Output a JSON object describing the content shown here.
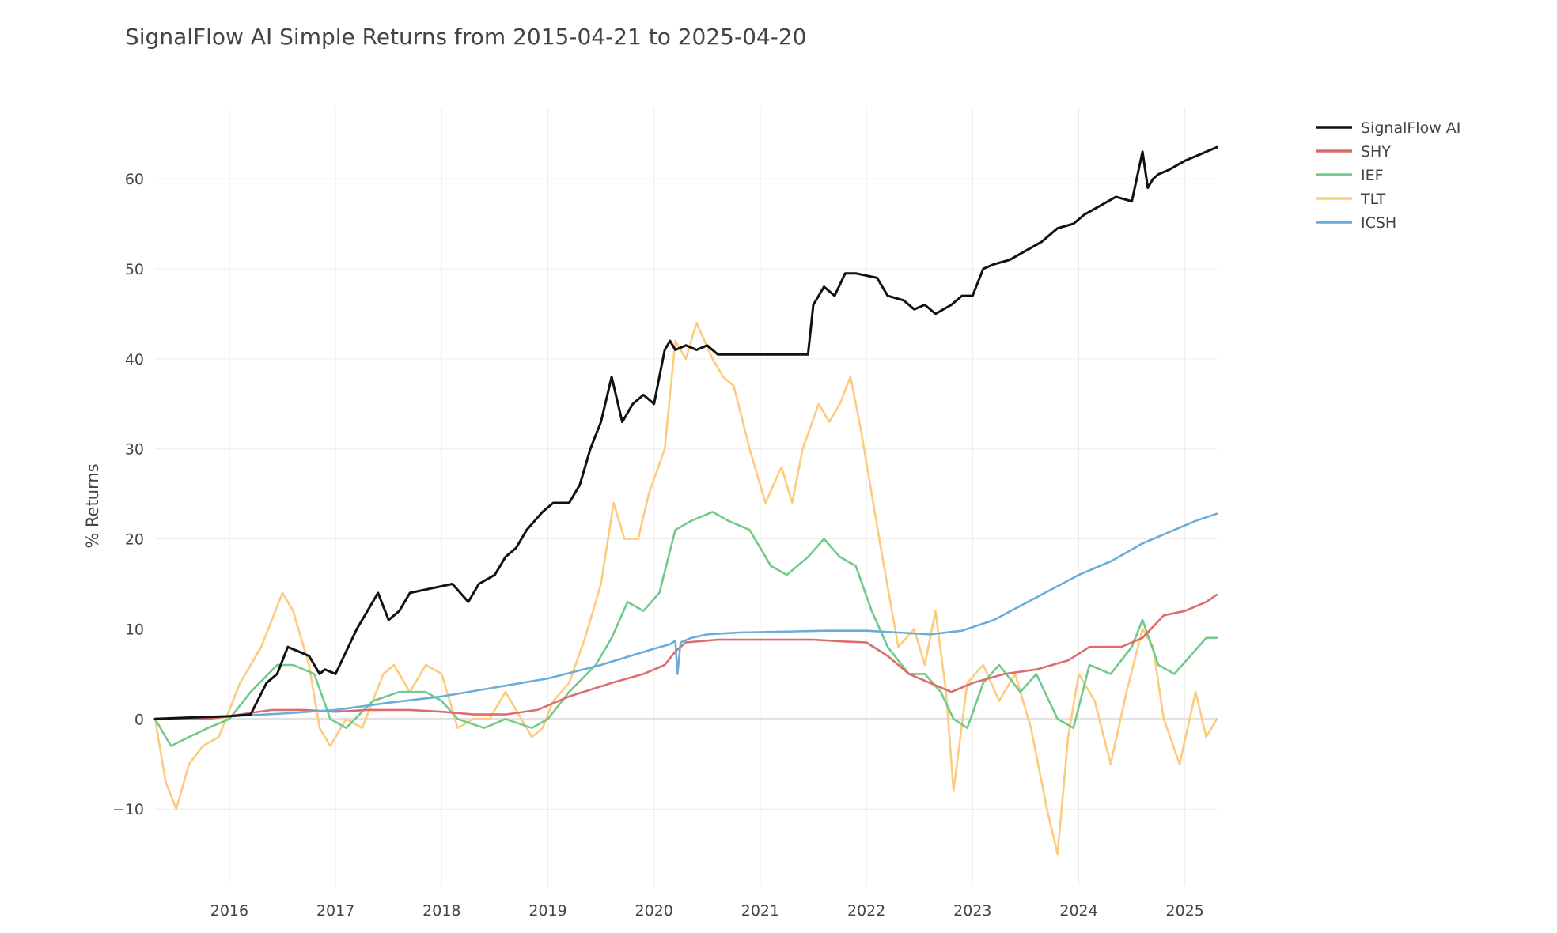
{
  "chart_data": {
    "type": "line",
    "title": "SignalFlow AI Simple Returns from 2015-04-21 to 2025-04-20",
    "xlabel": "",
    "ylabel": "% Returns",
    "xlim": [
      2015.3,
      2025.3
    ],
    "ylim": [
      -18.5,
      68
    ],
    "x_ticks": [
      {
        "value": 2016,
        "label": "2016"
      },
      {
        "value": 2017,
        "label": "2017"
      },
      {
        "value": 2018,
        "label": "2018"
      },
      {
        "value": 2019,
        "label": "2019"
      },
      {
        "value": 2020,
        "label": "2020"
      },
      {
        "value": 2021,
        "label": "2021"
      },
      {
        "value": 2022,
        "label": "2022"
      },
      {
        "value": 2023,
        "label": "2023"
      },
      {
        "value": 2024,
        "label": "2024"
      },
      {
        "value": 2025,
        "label": "2025"
      }
    ],
    "y_ticks": [
      {
        "value": -10,
        "label": "−10"
      },
      {
        "value": 0,
        "label": "0"
      },
      {
        "value": 10,
        "label": "10"
      },
      {
        "value": 20,
        "label": "20"
      },
      {
        "value": 30,
        "label": "30"
      },
      {
        "value": 40,
        "label": "40"
      },
      {
        "value": 50,
        "label": "50"
      },
      {
        "value": 60,
        "label": "60"
      }
    ],
    "grid": true,
    "legend_position": "top-right",
    "series": [
      {
        "name": "TLT",
        "color": "#fdcb7e",
        "x": [
          2015.3,
          2015.4,
          2015.5,
          2015.62,
          2015.75,
          2015.9,
          2016.1,
          2016.3,
          2016.5,
          2016.6,
          2016.75,
          2016.85,
          2016.95,
          2017.1,
          2017.25,
          2017.45,
          2017.55,
          2017.7,
          2017.85,
          2018.0,
          2018.15,
          2018.3,
          2018.45,
          2018.6,
          2018.7,
          2018.85,
          2018.95,
          2019.05,
          2019.2,
          2019.35,
          2019.5,
          2019.62,
          2019.72,
          2019.85,
          2019.95,
          2020.1,
          2020.2,
          2020.3,
          2020.4,
          2020.55,
          2020.65,
          2020.75,
          2020.9,
          2021.05,
          2021.2,
          2021.3,
          2021.4,
          2021.55,
          2021.65,
          2021.75,
          2021.85,
          2021.95,
          2022.05,
          2022.15,
          2022.3,
          2022.45,
          2022.55,
          2022.65,
          2022.75,
          2022.82,
          2022.95,
          2023.1,
          2023.25,
          2023.4,
          2023.55,
          2023.7,
          2023.8,
          2023.9,
          2024.0,
          2024.15,
          2024.3,
          2024.45,
          2024.6,
          2024.7,
          2024.8,
          2024.95,
          2025.1,
          2025.2,
          2025.3
        ],
        "y": [
          0,
          -7,
          -10,
          -5,
          -3,
          -2,
          4,
          8,
          14,
          12,
          6,
          -1,
          -3,
          0,
          -1,
          5,
          6,
          3,
          6,
          5,
          -1,
          0,
          0,
          3,
          1,
          -2,
          -1,
          2,
          4,
          9,
          15,
          24,
          20,
          20,
          25,
          30,
          42,
          40,
          44,
          40,
          38,
          37,
          30,
          24,
          28,
          24,
          30,
          35,
          33,
          35,
          38,
          32,
          25,
          18,
          8,
          10,
          6,
          12,
          3,
          -8,
          4,
          6,
          2,
          5,
          -1,
          -10,
          -15,
          -2,
          5,
          2,
          -5,
          3,
          10,
          8,
          0,
          -5,
          3,
          -2,
          0
        ]
      },
      {
        "name": "IEF",
        "color": "#72c98b",
        "x": [
          2015.3,
          2015.45,
          2015.62,
          2015.8,
          2016.0,
          2016.2,
          2016.45,
          2016.6,
          2016.8,
          2016.95,
          2017.1,
          2017.35,
          2017.6,
          2017.85,
          2018.0,
          2018.15,
          2018.4,
          2018.6,
          2018.85,
          2019.0,
          2019.2,
          2019.45,
          2019.6,
          2019.75,
          2019.9,
          2020.05,
          2020.2,
          2020.35,
          2020.55,
          2020.7,
          2020.9,
          2021.1,
          2021.25,
          2021.45,
          2021.6,
          2021.75,
          2021.9,
          2022.05,
          2022.2,
          2022.4,
          2022.55,
          2022.7,
          2022.82,
          2022.95,
          2023.1,
          2023.25,
          2023.45,
          2023.6,
          2023.8,
          2023.95,
          2024.1,
          2024.3,
          2024.5,
          2024.6,
          2024.75,
          2024.9,
          2025.05,
          2025.2,
          2025.3
        ],
        "y": [
          0,
          -3,
          -2,
          -1,
          0,
          3,
          6,
          6,
          5,
          0,
          -1,
          2,
          3,
          3,
          2,
          0,
          -1,
          0,
          -1,
          0,
          3,
          6,
          9,
          13,
          12,
          14,
          21,
          22,
          23,
          22,
          21,
          17,
          16,
          18,
          20,
          18,
          17,
          12,
          8,
          5,
          5,
          3,
          0,
          -1,
          4,
          6,
          3,
          5,
          0,
          -1,
          6,
          5,
          8,
          11,
          6,
          5,
          7,
          9,
          9
        ]
      },
      {
        "name": "SHY",
        "color": "#dd6d6d",
        "x": [
          2015.3,
          2015.8,
          2016.1,
          2016.4,
          2016.7,
          2017.0,
          2017.3,
          2017.7,
          2018.0,
          2018.3,
          2018.6,
          2018.9,
          2019.2,
          2019.6,
          2019.9,
          2020.1,
          2020.2,
          2020.3,
          2020.6,
          2020.9,
          2021.2,
          2021.5,
          2021.8,
          2022.0,
          2022.2,
          2022.4,
          2022.6,
          2022.8,
          2023.0,
          2023.3,
          2023.6,
          2023.9,
          2024.1,
          2024.4,
          2024.6,
          2024.8,
          2025.0,
          2025.2,
          2025.3
        ],
        "y": [
          0,
          0,
          0.5,
          1,
          1,
          0.8,
          1,
          1,
          0.8,
          0.5,
          0.5,
          1,
          2.5,
          4,
          5,
          6,
          7.5,
          8.5,
          8.8,
          8.8,
          8.8,
          8.8,
          8.6,
          8.5,
          7,
          5,
          4,
          3,
          4,
          5,
          5.5,
          6.5,
          8,
          8,
          9,
          11.5,
          12,
          13,
          13.8
        ]
      },
      {
        "name": "ICSH",
        "color": "#6aacda",
        "x": [
          2015.3,
          2016.0,
          2016.5,
          2017.0,
          2017.5,
          2018.0,
          2018.5,
          2019.0,
          2019.5,
          2020.0,
          2020.15,
          2020.2,
          2020.22,
          2020.25,
          2020.35,
          2020.5,
          2020.8,
          2021.2,
          2021.6,
          2022.0,
          2022.3,
          2022.6,
          2022.9,
          2023.2,
          2023.6,
          2024.0,
          2024.3,
          2024.6,
          2024.9,
          2025.1,
          2025.3
        ],
        "y": [
          0,
          0.3,
          0.6,
          1,
          1.8,
          2.5,
          3.5,
          4.5,
          6,
          7.8,
          8.3,
          8.7,
          5,
          8.5,
          9,
          9.4,
          9.6,
          9.7,
          9.8,
          9.8,
          9.6,
          9.4,
          9.8,
          11,
          13.5,
          16,
          17.5,
          19.5,
          21,
          22,
          22.8
        ]
      },
      {
        "name": "SignalFlow AI",
        "color": "#111111",
        "x": [
          2015.3,
          2015.7,
          2016.0,
          2016.2,
          2016.35,
          2016.45,
          2016.55,
          2016.75,
          2016.85,
          2016.9,
          2017.0,
          2017.2,
          2017.3,
          2017.4,
          2017.5,
          2017.6,
          2017.7,
          2017.9,
          2018.1,
          2018.25,
          2018.35,
          2018.5,
          2018.6,
          2018.7,
          2018.8,
          2018.95,
          2019.05,
          2019.2,
          2019.3,
          2019.4,
          2019.5,
          2019.6,
          2019.7,
          2019.8,
          2019.9,
          2020.0,
          2020.05,
          2020.1,
          2020.15,
          2020.2,
          2020.3,
          2020.4,
          2020.5,
          2020.6,
          2020.8,
          2021.0,
          2021.2,
          2021.45,
          2021.5,
          2021.6,
          2021.7,
          2021.8,
          2021.9,
          2022.1,
          2022.2,
          2022.35,
          2022.45,
          2022.55,
          2022.65,
          2022.8,
          2022.9,
          2023.0,
          2023.1,
          2023.2,
          2023.35,
          2023.5,
          2023.65,
          2023.8,
          2023.95,
          2024.05,
          2024.2,
          2024.35,
          2024.5,
          2024.6,
          2024.65,
          2024.7,
          2024.75,
          2024.85,
          2025.0,
          2025.1,
          2025.2,
          2025.3
        ],
        "y": [
          0,
          0.2,
          0.3,
          0.5,
          4,
          5,
          8,
          7,
          5,
          5.5,
          5,
          10,
          12,
          14,
          11,
          12,
          14,
          14.5,
          15,
          13,
          15,
          16,
          18,
          19,
          21,
          23,
          24,
          24,
          26,
          30,
          33,
          38,
          33,
          35,
          36,
          35,
          38,
          41,
          42,
          41,
          41.5,
          41,
          41.5,
          40.5,
          40.5,
          40.5,
          40.5,
          40.5,
          46,
          48,
          47,
          49.5,
          49.5,
          49,
          47,
          46.5,
          45.5,
          46,
          45,
          46,
          47,
          47,
          50,
          50.5,
          51,
          52,
          53,
          54.5,
          55,
          56,
          57,
          58,
          57.5,
          63,
          59,
          60,
          60.5,
          61,
          62,
          62.5,
          63,
          63.5
        ]
      }
    ]
  }
}
